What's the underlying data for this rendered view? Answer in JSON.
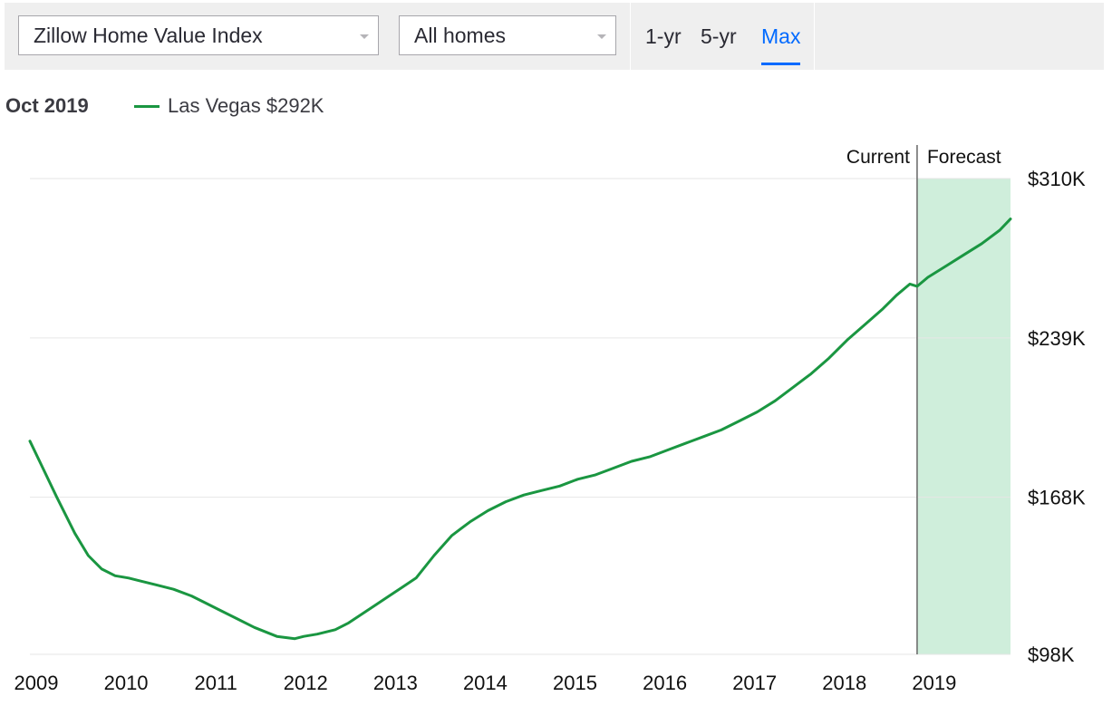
{
  "toolbar": {
    "metric_select": "Zillow Home Value Index",
    "home_type_select": "All homes",
    "ranges": [
      "1-yr",
      "5-yr",
      "Max"
    ],
    "active_range": "Max"
  },
  "legend": {
    "date": "Oct 2019",
    "series_label": "Las Vegas $292K"
  },
  "chart_data": {
    "type": "line",
    "title": "",
    "xlabel": "",
    "ylabel": "",
    "ylim": [
      98,
      310
    ],
    "y_unit": "$K",
    "y_ticks": [
      98,
      168,
      239,
      310
    ],
    "y_tick_labels": [
      "$98K",
      "$168K",
      "$239K",
      "$310K"
    ],
    "x_ticks": [
      2009,
      2010,
      2011,
      2012,
      2013,
      2014,
      2015,
      2016,
      2017,
      2018,
      2019
    ],
    "x_tick_labels": [
      "2009",
      "2010",
      "2011",
      "2012",
      "2013",
      "2014",
      "2015",
      "2016",
      "2017",
      "2018",
      "2019"
    ],
    "xlim": [
      2009,
      2019.92
    ],
    "grid": "horizontal",
    "regions": [
      {
        "label": "Current",
        "end": 2018.88
      },
      {
        "label": "Forecast",
        "start": 2018.88,
        "end": 2019.92,
        "color": "#cfeedb"
      }
    ],
    "series": [
      {
        "name": "Las Vegas",
        "color": "#1a9641",
        "x": [
          2009.0,
          2009.12,
          2009.3,
          2009.5,
          2009.65,
          2009.8,
          2009.95,
          2010.1,
          2010.2,
          2010.4,
          2010.6,
          2010.8,
          2010.95,
          2011.1,
          2011.3,
          2011.5,
          2011.75,
          2011.95,
          2012.05,
          2012.2,
          2012.4,
          2012.55,
          2012.7,
          2012.85,
          2013.0,
          2013.15,
          2013.3,
          2013.5,
          2013.7,
          2013.9,
          2014.1,
          2014.3,
          2014.5,
          2014.7,
          2014.9,
          2015.1,
          2015.3,
          2015.5,
          2015.7,
          2015.9,
          2016.1,
          2016.3,
          2016.5,
          2016.7,
          2016.9,
          2017.1,
          2017.3,
          2017.5,
          2017.7,
          2017.9,
          2018.1,
          2018.3,
          2018.5,
          2018.65,
          2018.8,
          2018.88,
          2019.0,
          2019.2,
          2019.4,
          2019.6,
          2019.8,
          2019.92
        ],
        "values": [
          193,
          183,
          168,
          152,
          142,
          136,
          133,
          132,
          131,
          129,
          127,
          124,
          121,
          118,
          114,
          110,
          106,
          105,
          106,
          107,
          109,
          112,
          116,
          120,
          124,
          128,
          132,
          142,
          151,
          157,
          162,
          166,
          169,
          171,
          173,
          176,
          178,
          181,
          184,
          186,
          189,
          192,
          195,
          198,
          202,
          206,
          211,
          217,
          223,
          230,
          238,
          245,
          252,
          258,
          263,
          262,
          266,
          271,
          276,
          281,
          287,
          292
        ]
      }
    ]
  }
}
